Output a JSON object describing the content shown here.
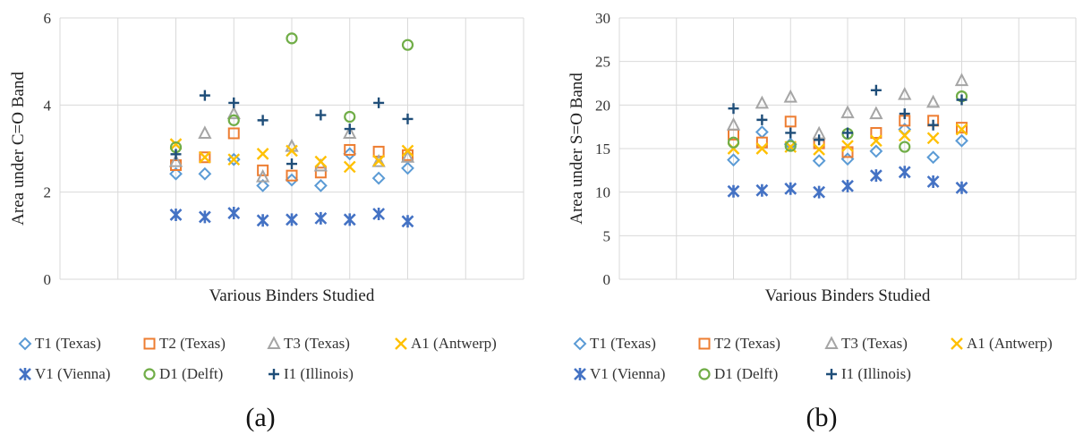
{
  "charts": [
    {
      "panel_label": "(a)",
      "chart_data": {
        "type": "scatter",
        "title": "",
        "xlabel": "Various Binders Studied",
        "ylabel": "Area under C=O Band",
        "ylim": [
          0,
          6
        ],
        "yticks": [
          0,
          2,
          4,
          6
        ],
        "x": [
          1,
          2,
          3,
          4,
          5,
          6,
          7,
          8,
          9
        ],
        "xlim": [
          -3,
          13
        ],
        "grid": true,
        "legend": "bottom",
        "series": [
          {
            "name": "T1 (Texas)",
            "marker": "diamond",
            "color": "#5b9bd5",
            "values": [
              2.42,
              2.42,
              2.75,
              2.15,
              2.28,
              2.15,
              2.88,
              2.32,
              2.55
            ]
          },
          {
            "name": "T2 (Texas)",
            "marker": "square",
            "color": "#ed7d31",
            "values": [
              2.62,
              2.8,
              3.35,
              2.5,
              2.38,
              2.45,
              2.97,
              2.93,
              2.85
            ]
          },
          {
            "name": "T3 (Texas)",
            "marker": "triangle",
            "color": "#a5a5a5",
            "values": [
              2.7,
              3.35,
              3.8,
              2.35,
              3.05,
              2.6,
              3.35,
              2.7,
              2.8
            ]
          },
          {
            "name": "A1 (Antwerp)",
            "marker": "x",
            "color": "#ffc000",
            "values": [
              3.1,
              2.8,
              2.75,
              2.88,
              2.95,
              2.7,
              2.58,
              2.72,
              2.95
            ]
          },
          {
            "name": "V1 (Vienna)",
            "marker": "star",
            "color": "#4472c4",
            "values": [
              1.48,
              1.43,
              1.52,
              1.35,
              1.37,
              1.4,
              1.37,
              1.5,
              1.33
            ]
          },
          {
            "name": "D1 (Delft)",
            "marker": "circle",
            "color": "#70ad47",
            "values": [
              3.03,
              null,
              3.65,
              null,
              5.53,
              null,
              3.73,
              null,
              5.38
            ]
          },
          {
            "name": "I1 (Illinois)",
            "marker": "plus",
            "color": "#1f4e79",
            "values": [
              2.87,
              4.22,
              4.05,
              3.65,
              2.65,
              3.77,
              3.45,
              4.05,
              3.68
            ]
          }
        ]
      }
    },
    {
      "panel_label": "(b)",
      "chart_data": {
        "type": "scatter",
        "title": "",
        "xlabel": "Various Binders Studied",
        "ylabel": "Area under S=O Band",
        "ylim": [
          0,
          30
        ],
        "yticks": [
          0,
          5,
          10,
          15,
          20,
          25,
          30
        ],
        "x": [
          1,
          2,
          3,
          4,
          5,
          6,
          7,
          8,
          9
        ],
        "xlim": [
          -3,
          13
        ],
        "grid": true,
        "legend": "bottom",
        "series": [
          {
            "name": "T1 (Texas)",
            "marker": "diamond",
            "color": "#5b9bd5",
            "values": [
              13.7,
              16.9,
              15.5,
              13.6,
              13.8,
              14.7,
              17.2,
              14.0,
              15.9
            ]
          },
          {
            "name": "T2 (Texas)",
            "marker": "square",
            "color": "#ed7d31",
            "values": [
              16.6,
              15.7,
              18.1,
              15.6,
              14.6,
              16.8,
              18.2,
              18.2,
              17.4
            ]
          },
          {
            "name": "T3 (Texas)",
            "marker": "triangle",
            "color": "#a5a5a5",
            "values": [
              17.7,
              20.2,
              20.9,
              16.7,
              19.1,
              19.0,
              21.2,
              20.3,
              22.8
            ]
          },
          {
            "name": "A1 (Antwerp)",
            "marker": "x",
            "color": "#ffc000",
            "values": [
              15.0,
              15.0,
              15.2,
              14.9,
              15.3,
              15.9,
              16.5,
              16.2,
              17.2
            ]
          },
          {
            "name": "V1 (Vienna)",
            "marker": "star",
            "color": "#4472c4",
            "values": [
              10.1,
              10.2,
              10.4,
              10.0,
              10.7,
              11.9,
              12.3,
              11.2,
              10.5
            ]
          },
          {
            "name": "D1 (Delft)",
            "marker": "circle",
            "color": "#70ad47",
            "values": [
              15.7,
              null,
              15.3,
              null,
              16.7,
              null,
              15.2,
              null,
              21.0
            ]
          },
          {
            "name": "I1 (Illinois)",
            "marker": "plus",
            "color": "#1f4e79",
            "values": [
              19.6,
              18.3,
              16.8,
              16.0,
              16.8,
              21.7,
              19.0,
              17.7,
              20.6
            ]
          }
        ]
      }
    }
  ]
}
